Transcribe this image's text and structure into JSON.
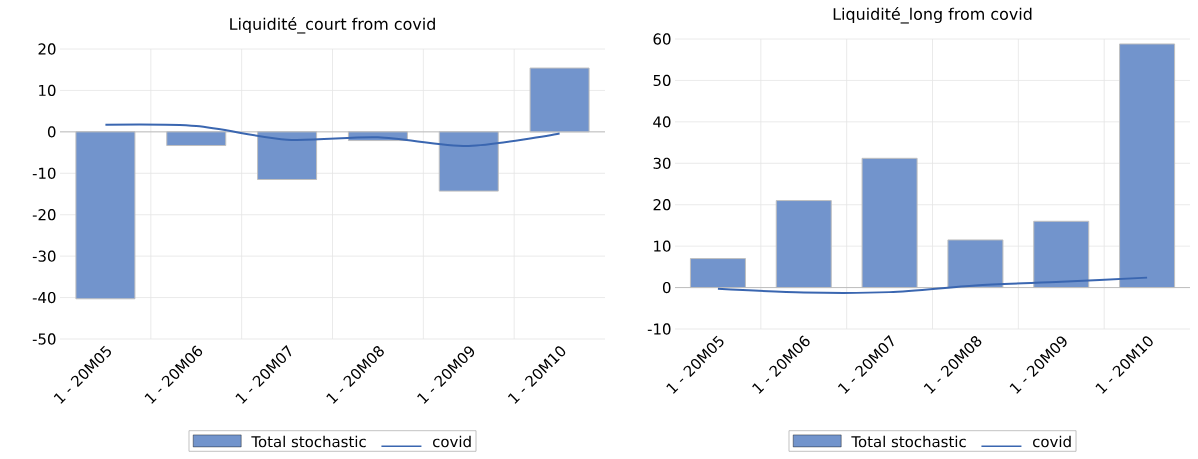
{
  "chart_data": [
    {
      "type": "bar",
      "title": "Liquidité_court from covid",
      "categories": [
        "1 - 20M05",
        "1 - 20M06",
        "1 - 20M07",
        "1 - 20M08",
        "1 - 20M09",
        "1 - 20M10"
      ],
      "ylim": [
        -50,
        20
      ],
      "yticks": [
        -50,
        -40,
        -30,
        -20,
        -10,
        0,
        10,
        20
      ],
      "grid": true,
      "legend": "bottom",
      "series": [
        {
          "name": "Total stochastic",
          "color": "#7294cc",
          "values": [
            -40.3,
            -3.3,
            -11.5,
            -2.1,
            -14.3,
            15.4
          ]
        },
        {
          "name": "covid",
          "type": "line",
          "color": "#3a66b0",
          "values": [
            1.7,
            1.4,
            -1.9,
            -1.3,
            -3.4,
            -0.4
          ]
        }
      ]
    },
    {
      "type": "bar",
      "title": "Liquidité_long from covid",
      "categories": [
        "1 - 20M05",
        "1 - 20M06",
        "1 - 20M07",
        "1 - 20M08",
        "1 - 20M09",
        "1 - 20M10"
      ],
      "ylim": [
        -10,
        60
      ],
      "yticks": [
        -10,
        0,
        10,
        20,
        30,
        40,
        50,
        60
      ],
      "grid": true,
      "legend": "bottom",
      "series": [
        {
          "name": "Total stochastic",
          "color": "#7294cc",
          "values": [
            7,
            21,
            31.2,
            11.5,
            16,
            58.8
          ]
        },
        {
          "name": "covid",
          "type": "line",
          "color": "#3a66b0",
          "values": [
            -0.3,
            -1.2,
            -1.1,
            0.5,
            1.4,
            2.4
          ]
        }
      ]
    }
  ]
}
